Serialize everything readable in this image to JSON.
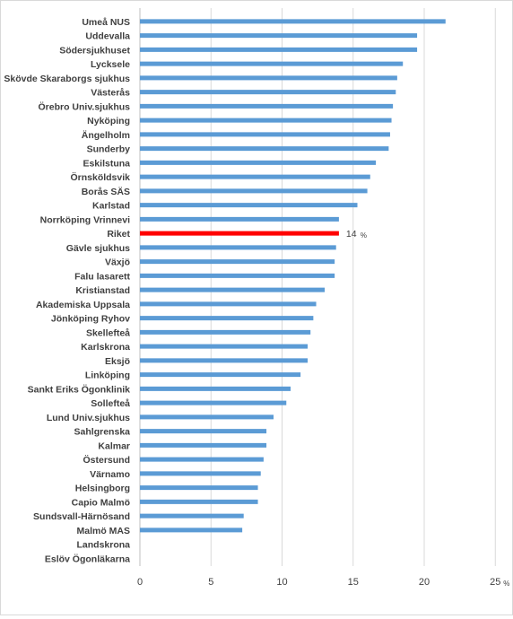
{
  "chart_data": {
    "type": "bar",
    "orientation": "horizontal",
    "categories": [
      "Umeå NUS",
      "Uddevalla",
      "Södersjukhuset",
      "Lycksele",
      "Skövde Skaraborgs sjukhus",
      "Västerås",
      "Örebro Univ.sjukhus",
      "Nyköping",
      "Ängelholm",
      "Sunderby",
      "Eskilstuna",
      "Örnsköldsvik",
      "Borås SÄS",
      "Karlstad",
      "Norrköping Vrinnevi",
      "Riket",
      "Gävle sjukhus",
      "Växjö",
      "Falu lasarett",
      "Kristianstad",
      "Akademiska Uppsala",
      "Jönköping Ryhov",
      "Skellefteå",
      "Karlskrona",
      "Eksjö",
      "Linköping",
      "Sankt Eriks Ögonklinik",
      "Sollefteå",
      "Lund Univ.sjukhus",
      "Sahlgrenska",
      "Kalmar",
      "Östersund",
      "Värnamo",
      "Helsingborg",
      "Capio Malmö",
      "Sundsvall-Härnösand",
      "Malmö MAS",
      "Landskrona",
      "Eslöv Ögonläkarna"
    ],
    "values": [
      21.5,
      19.5,
      19.5,
      18.5,
      18.1,
      18.0,
      17.8,
      17.7,
      17.6,
      17.5,
      16.6,
      16.2,
      16.0,
      15.3,
      14.0,
      14.0,
      13.8,
      13.7,
      13.7,
      13.0,
      12.4,
      12.2,
      12.0,
      11.8,
      11.8,
      11.3,
      10.6,
      10.3,
      9.4,
      8.9,
      8.9,
      8.7,
      8.5,
      8.3,
      8.3,
      7.3,
      7.2,
      0,
      0
    ],
    "highlight": {
      "category": "Riket",
      "label": "14",
      "unit": "%",
      "color": "#ff0000"
    },
    "bar_color": "#5b9bd5",
    "x_ticks": [
      0,
      5,
      10,
      15,
      20,
      25
    ],
    "x_unit": "%",
    "xlim": [
      0,
      25
    ],
    "grid": "vertical",
    "title": "",
    "xlabel": "",
    "ylabel": ""
  }
}
